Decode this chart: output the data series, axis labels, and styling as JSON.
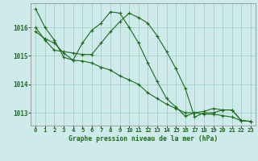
{
  "title": "Graphe pression niveau de la mer (hPa)",
  "background_color": "#ceeaea",
  "grid_color": "#a8d5c8",
  "line_color": "#1a6b1a",
  "xlim": [
    -0.5,
    23.5
  ],
  "ylim": [
    1012.55,
    1016.85
  ],
  "yticks": [
    1013,
    1014,
    1015,
    1016
  ],
  "xticks": [
    0,
    1,
    2,
    3,
    4,
    5,
    6,
    7,
    8,
    9,
    10,
    11,
    12,
    13,
    14,
    15,
    16,
    17,
    18,
    19,
    20,
    21,
    22,
    23
  ],
  "series": [
    [
      1016.65,
      1016.0,
      1015.55,
      1014.95,
      1014.85,
      1014.82,
      1014.75,
      1014.6,
      1014.5,
      1014.3,
      1014.15,
      1014.0,
      1013.7,
      1013.5,
      1013.3,
      1013.15,
      1013.0,
      1013.0,
      1012.95,
      1012.95,
      1012.9,
      1012.85,
      1012.72,
      1012.7
    ],
    [
      1016.0,
      1015.55,
      1015.2,
      1015.15,
      1015.1,
      1015.05,
      1015.05,
      1015.45,
      1015.85,
      1016.2,
      1016.5,
      1016.35,
      1016.15,
      1015.7,
      1015.15,
      1014.55,
      1013.85,
      1012.85,
      1013.0,
      1013.0,
      1013.1,
      1013.1,
      1012.72,
      1012.7
    ],
    [
      1015.85,
      1015.6,
      1015.45,
      1015.1,
      1014.85,
      1015.45,
      1015.9,
      1016.15,
      1016.55,
      1016.5,
      1016.0,
      1015.45,
      1014.75,
      1014.1,
      1013.5,
      1013.2,
      1012.88,
      1013.0,
      1013.05,
      1013.15,
      1013.1,
      1013.1,
      1012.72,
      1012.7
    ]
  ]
}
